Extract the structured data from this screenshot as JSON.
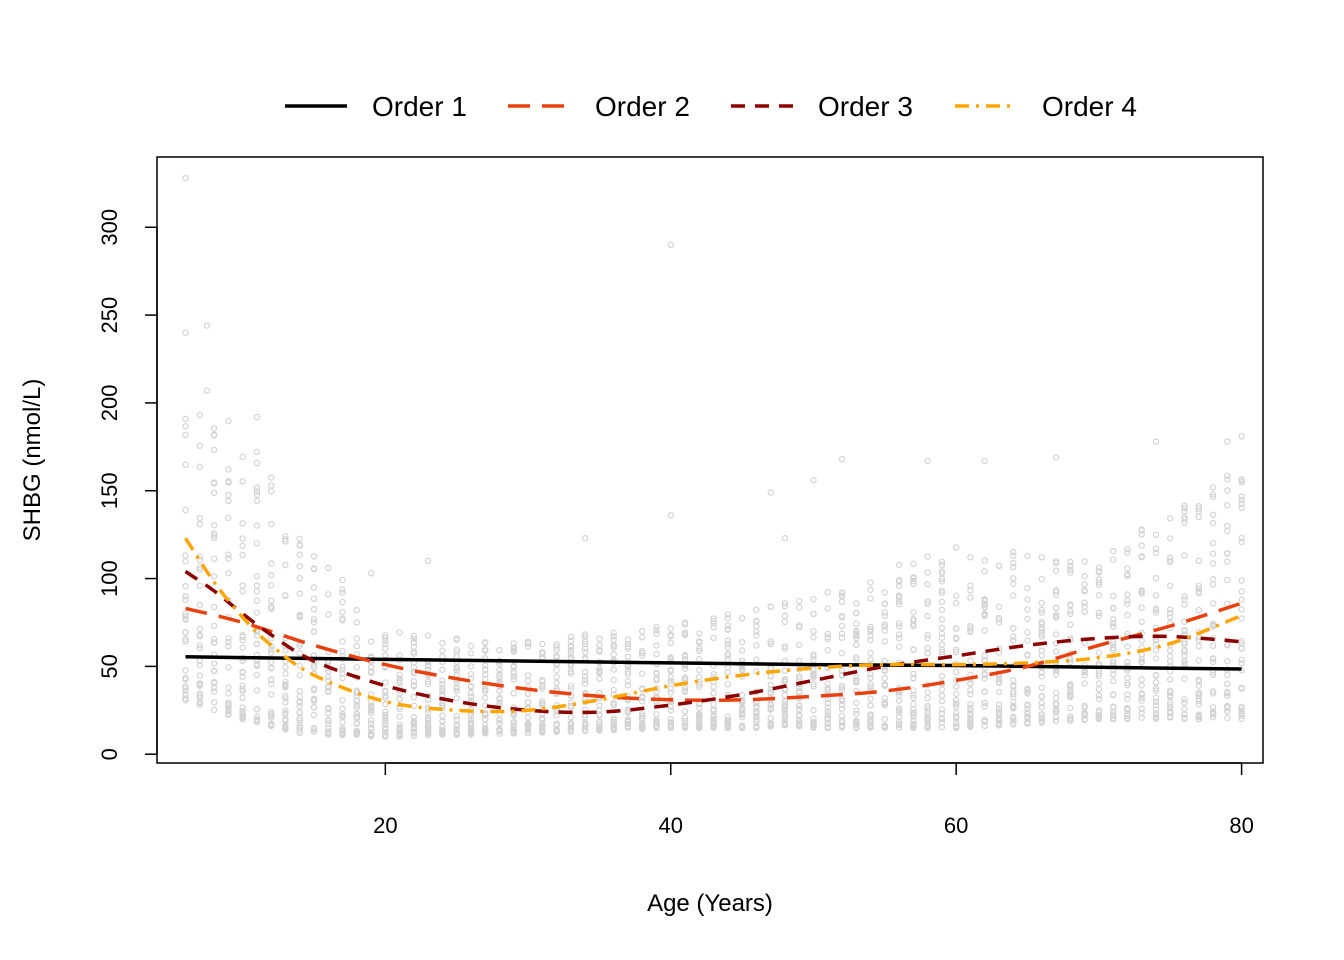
{
  "chart_data": {
    "type": "scatter",
    "title": "",
    "xlabel": "Age (Years)",
    "ylabel": "SHBG (nmol/L)",
    "xlim": [
      4,
      81.5
    ],
    "ylim": [
      -5,
      340
    ],
    "x_ticks": [
      20,
      40,
      60,
      80
    ],
    "y_ticks": [
      0,
      50,
      100,
      150,
      200,
      250,
      300
    ],
    "x_tick_labels": [
      "20",
      "40",
      "60",
      "80"
    ],
    "y_tick_labels": [
      "0",
      "50",
      "100",
      "150",
      "200",
      "250",
      "300"
    ],
    "grid": false,
    "legend_placement": "top (outside plot, horizontal)",
    "points_color": "#d3d3d3",
    "points": {
      "x_range": [
        6,
        80
      ],
      "typical_band": [
        [
          6,
          30,
          200
        ],
        [
          10,
          20,
          190
        ],
        [
          14,
          12,
          130
        ],
        [
          20,
          10,
          70
        ],
        [
          30,
          12,
          65
        ],
        [
          40,
          15,
          75
        ],
        [
          50,
          15,
          90
        ],
        [
          60,
          15,
          120
        ],
        [
          70,
          20,
          110
        ],
        [
          80,
          20,
          170
        ]
      ],
      "outliers": [
        [
          6,
          328
        ],
        [
          6,
          240
        ],
        [
          7.5,
          244
        ],
        [
          7.5,
          207
        ],
        [
          11,
          192
        ],
        [
          40,
          290
        ],
        [
          40,
          136
        ],
        [
          47,
          149
        ],
        [
          50,
          156
        ],
        [
          52,
          168
        ],
        [
          58,
          167
        ],
        [
          62,
          167
        ],
        [
          67,
          169
        ],
        [
          74,
          178
        ],
        [
          79,
          178
        ],
        [
          80,
          181
        ],
        [
          19,
          103
        ],
        [
          23,
          110
        ],
        [
          34,
          123
        ],
        [
          48,
          123
        ]
      ]
    },
    "series": [
      {
        "name": "Order 1",
        "color": "#000000",
        "dash": "solid",
        "x": [
          6,
          10,
          20,
          30,
          40,
          50,
          60,
          70,
          80
        ],
        "y": [
          55.5,
          55,
          54,
          53,
          52,
          51,
          50.5,
          49.5,
          48.5
        ]
      },
      {
        "name": "Order 2",
        "color": "#e8410e",
        "dash": "long-dash",
        "x": [
          6,
          10,
          15,
          20,
          25,
          30,
          35,
          40,
          45,
          50,
          55,
          60,
          65,
          70,
          75,
          80
        ],
        "y": [
          83,
          75,
          62,
          51,
          43,
          37,
          33,
          31,
          31,
          33,
          36,
          42,
          50,
          62,
          73,
          86
        ]
      },
      {
        "name": "Order 3",
        "color": "#8b0000",
        "dash": "dash",
        "x": [
          6,
          8,
          10,
          12,
          15,
          20,
          25,
          30,
          35,
          40,
          45,
          50,
          55,
          60,
          65,
          70,
          75,
          80
        ],
        "y": [
          104,
          93,
          80,
          68,
          53,
          39,
          30,
          25,
          24,
          28,
          34,
          42,
          50,
          56,
          62,
          66,
          67,
          64
        ]
      },
      {
        "name": "Order 4",
        "color": "#ffa500",
        "dash": "dash-dot",
        "x": [
          6,
          8,
          10,
          12,
          15,
          20,
          25,
          30,
          35,
          40,
          45,
          50,
          55,
          60,
          65,
          70,
          75,
          80
        ],
        "y": [
          123,
          98,
          78,
          62,
          45,
          30,
          25,
          25,
          31,
          39,
          45,
          49,
          51,
          51,
          52,
          55,
          63,
          79
        ]
      }
    ]
  }
}
